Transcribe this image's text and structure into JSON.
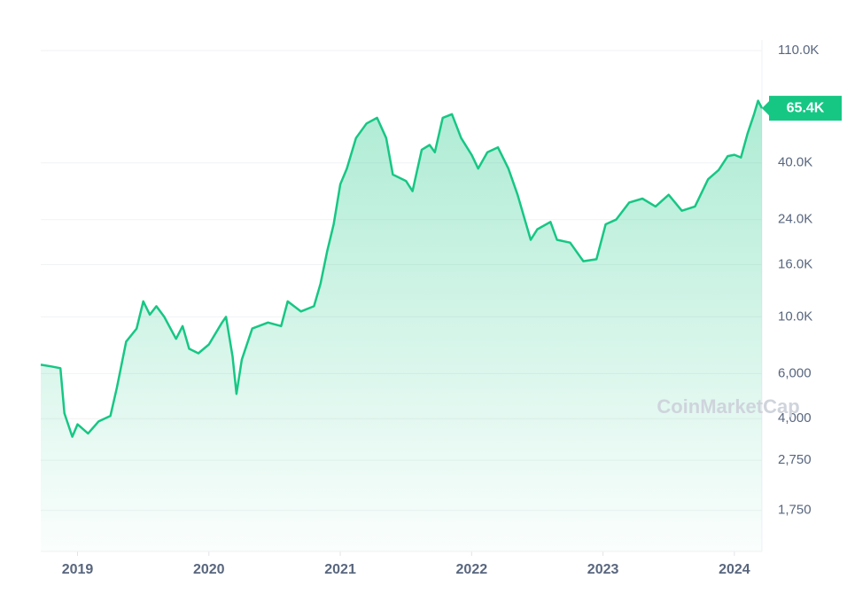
{
  "chart_data": {
    "type": "line",
    "log_y": true,
    "grid": true,
    "color": "#16c784",
    "area": true,
    "current_label": "65.4K",
    "watermark": "CoinMarketCap",
    "xlim": [
      2018.72,
      2024.21
    ],
    "xticks": [
      2019,
      2020,
      2021,
      2022,
      2023,
      2024
    ],
    "ylim": [
      1210,
      121000
    ],
    "yticks": [
      {
        "value": 110000,
        "label": "110.0K"
      },
      {
        "value": 40000,
        "label": "40.0K"
      },
      {
        "value": 24000,
        "label": "24.0K"
      },
      {
        "value": 16000,
        "label": "16.0K"
      },
      {
        "value": 10000,
        "label": "10.0K"
      },
      {
        "value": 6000,
        "label": "6,000"
      },
      {
        "value": 4000,
        "label": "4,000"
      },
      {
        "value": 2750,
        "label": "2,750"
      },
      {
        "value": 1750,
        "label": "1,750"
      }
    ],
    "x": [
      2018.72,
      2018.8,
      2018.87,
      2018.9,
      2018.96,
      2019.0,
      2019.08,
      2019.16,
      2019.25,
      2019.3,
      2019.37,
      2019.45,
      2019.5,
      2019.55,
      2019.6,
      2019.66,
      2019.75,
      2019.8,
      2019.85,
      2019.92,
      2020.0,
      2020.1,
      2020.13,
      2020.18,
      2020.21,
      2020.25,
      2020.33,
      2020.45,
      2020.55,
      2020.6,
      2020.7,
      2020.8,
      2020.85,
      2020.9,
      2020.95,
      2021.0,
      2021.05,
      2021.12,
      2021.2,
      2021.28,
      2021.35,
      2021.4,
      2021.5,
      2021.55,
      2021.62,
      2021.68,
      2021.72,
      2021.78,
      2021.85,
      2021.92,
      2022.0,
      2022.05,
      2022.12,
      2022.2,
      2022.28,
      2022.35,
      2022.45,
      2022.5,
      2022.6,
      2022.65,
      2022.75,
      2022.85,
      2022.95,
      2023.02,
      2023.1,
      2023.2,
      2023.3,
      2023.4,
      2023.5,
      2023.6,
      2023.7,
      2023.8,
      2023.88,
      2023.95,
      2024.0,
      2024.05,
      2024.1,
      2024.15,
      2024.18,
      2024.21
    ],
    "values": [
      6500,
      6400,
      6300,
      4200,
      3400,
      3800,
      3500,
      3900,
      4100,
      5300,
      8000,
      9000,
      11500,
      10200,
      11000,
      10000,
      8200,
      9200,
      7500,
      7200,
      7800,
      9500,
      10000,
      7000,
      5000,
      6800,
      9000,
      9500,
      9200,
      11500,
      10500,
      11000,
      13500,
      18000,
      23000,
      33000,
      38000,
      50000,
      57000,
      60000,
      50000,
      36000,
      34000,
      31000,
      45000,
      47000,
      44000,
      60000,
      62000,
      50000,
      43000,
      38000,
      44000,
      46000,
      38000,
      30000,
      20000,
      22000,
      23500,
      20000,
      19500,
      16500,
      16800,
      23000,
      24000,
      28000,
      29000,
      27000,
      30000,
      26000,
      27000,
      34500,
      37500,
      42500,
      43000,
      42000,
      52000,
      62000,
      70000,
      65400
    ]
  }
}
